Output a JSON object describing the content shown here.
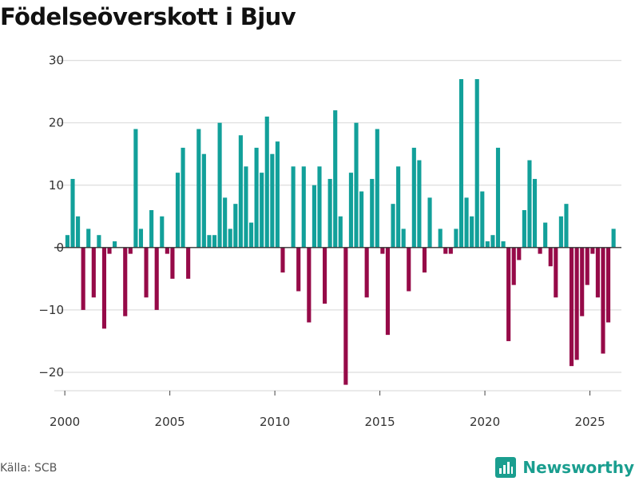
{
  "header": {
    "title": "Födelseöverskott i Bjuv"
  },
  "footer": {
    "source": "Källa: SCB",
    "brand": "Newsworthy"
  },
  "colors": {
    "positive": "#12a09a",
    "negative": "#960a48",
    "brand": "#1a9e8f",
    "grid": "#dddddd",
    "zero_line": "#333333"
  },
  "chart_data": {
    "type": "bar",
    "title": "Födelseöverskott i Bjuv",
    "xlabel": "",
    "ylabel": "",
    "ylim": [
      -25,
      32
    ],
    "xlim": [
      1999.5,
      2026.5
    ],
    "yticks": [
      -20,
      -10,
      0,
      10,
      20,
      30
    ],
    "ytick_labels": [
      "−20",
      "−10",
      "0",
      "10",
      "20",
      "30"
    ],
    "xticks": [
      2000,
      2005,
      2010,
      2015,
      2020,
      2025
    ],
    "xtick_labels": [
      "2000",
      "2005",
      "2010",
      "2015",
      "2020",
      "2025"
    ],
    "period": "monthly, plotted in quarter-year bars",
    "start": 2000.125,
    "step": 0.25,
    "values": [
      2,
      11,
      5,
      -10,
      3,
      -8,
      2,
      -13,
      -1,
      1,
      0,
      -11,
      -1,
      19,
      3,
      -8,
      6,
      -10,
      5,
      -1,
      -5,
      12,
      16,
      -5,
      0,
      19,
      15,
      2,
      2,
      20,
      8,
      3,
      7,
      18,
      13,
      4,
      16,
      12,
      21,
      15,
      17,
      -4,
      0,
      13,
      -7,
      13,
      -12,
      10,
      13,
      -9,
      11,
      22,
      5,
      -22,
      12,
      20,
      9,
      -8,
      11,
      19,
      -1,
      -14,
      7,
      13,
      3,
      -7,
      16,
      14,
      -4,
      8,
      0,
      3,
      -1,
      -1,
      3,
      27,
      8,
      5,
      27,
      9,
      1,
      2,
      16,
      1,
      -15,
      -6,
      -2,
      6,
      14,
      11,
      -1,
      4,
      -3,
      -8,
      5,
      7,
      -19,
      -18,
      -11,
      -6,
      -1,
      -8,
      -17,
      -12,
      3
    ]
  }
}
